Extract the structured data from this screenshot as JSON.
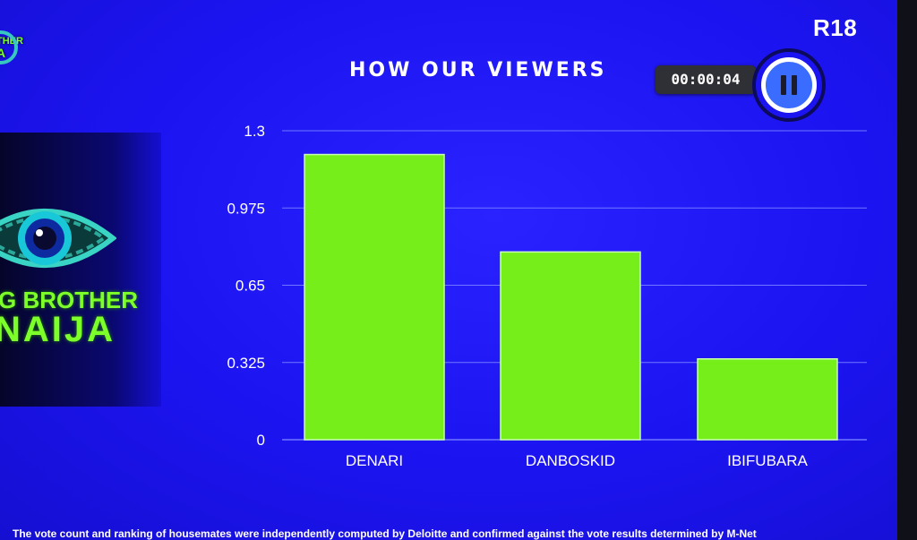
{
  "header": {
    "logo_line1": "THER",
    "logo_line2": "A",
    "rating": "R18",
    "title": "HOW OUR VIEWERS",
    "timer": "00:00:04"
  },
  "side_logo": {
    "line1": "G BROTHER",
    "line2": "NAIJA"
  },
  "colors": {
    "background": "#1c14f0",
    "bar": "#76ee1a",
    "gridline": "#6f78ff",
    "logo_green": "#7dff2a"
  },
  "icons": {
    "pause": "pause-icon",
    "eye": "eye-icon"
  },
  "chart_data": {
    "type": "bar",
    "categories": [
      "DENARI",
      "DANBOSKID",
      "IBIFUBARA"
    ],
    "values": [
      1.2,
      0.79,
      0.34
    ],
    "ylim": [
      0,
      1.3
    ],
    "yticks": [
      0,
      0.325,
      0.65,
      0.975,
      1.3
    ],
    "ytick_labels": [
      "0",
      "0.325",
      "0.65",
      "0.975",
      "1.3"
    ],
    "title": "",
    "xlabel": "",
    "ylabel": "",
    "grid": true,
    "legend": "none"
  },
  "footer": {
    "disclaimer": "The vote count and ranking of housemates were independently computed by Deloitte and confirmed against the vote results determined by M-Net"
  }
}
